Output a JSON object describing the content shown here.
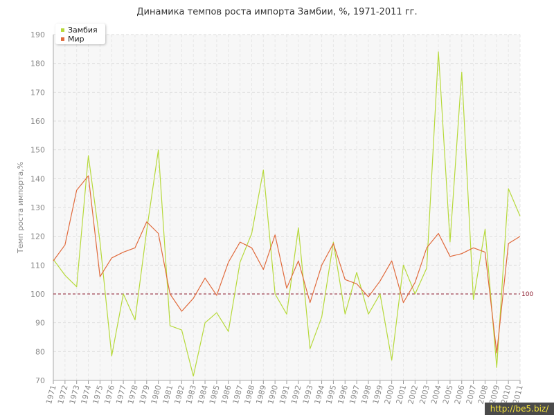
{
  "chart_data": {
    "type": "line",
    "title": "Динамика темпов роста импорта Замбии, %, 1971-2011 гг.",
    "xlabel": "",
    "ylabel": "Темп роста импорта,%",
    "ylim": [
      70,
      190
    ],
    "yticks": [
      70,
      80,
      90,
      100,
      110,
      120,
      130,
      140,
      150,
      160,
      170,
      180,
      190
    ],
    "grid": true,
    "legend_position": "top-left",
    "x": [
      1971,
      1972,
      1973,
      1974,
      1975,
      1976,
      1977,
      1978,
      1979,
      1980,
      1981,
      1982,
      1983,
      1984,
      1985,
      1986,
      1987,
      1988,
      1989,
      1990,
      1991,
      1992,
      1993,
      1994,
      1995,
      1996,
      1997,
      1998,
      1999,
      2000,
      2001,
      2002,
      2003,
      2004,
      2005,
      2006,
      2007,
      2008,
      2009,
      2010,
      2011
    ],
    "series": [
      {
        "name": "Замбия",
        "color": "#b6d93a",
        "values": [
          112,
          106.5,
          102.5,
          148,
          118,
          78.5,
          100,
          91,
          122,
          150,
          89,
          87.5,
          71.5,
          90,
          93.5,
          87,
          111,
          121,
          143,
          100,
          93,
          123,
          81,
          92,
          118,
          93,
          107.5,
          93,
          100,
          77,
          110,
          100,
          109,
          184,
          118,
          177,
          98,
          122.5,
          74.5,
          136.5,
          127
        ]
      },
      {
        "name": "Мир",
        "color": "#e06a3c",
        "values": [
          111.5,
          117,
          136,
          141,
          106,
          112.5,
          114.5,
          116,
          125,
          121,
          100,
          94,
          98.5,
          105.5,
          99.5,
          111,
          118,
          116,
          108.5,
          120.5,
          102,
          111.5,
          97,
          110,
          117.5,
          105,
          103.5,
          99,
          104.5,
          111.5,
          97,
          104,
          116,
          121,
          113,
          114,
          116,
          114.5,
          79.5,
          117.5,
          120
        ]
      }
    ],
    "reference_line": {
      "value": 100,
      "label": "100",
      "color": "#8b1a2b"
    }
  },
  "watermark": "http://be5.biz/"
}
